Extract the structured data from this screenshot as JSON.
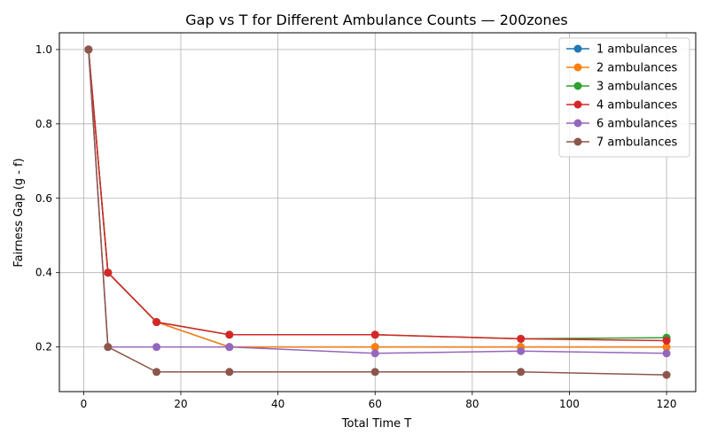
{
  "chart_data": {
    "type": "line",
    "title": "Gap vs T for Different Ambulance Counts — 200zones",
    "xlabel": "Total Time T",
    "ylabel": "Fairness Gap (g - f)",
    "xlim": [
      -5,
      126
    ],
    "ylim": [
      0.08,
      1.045
    ],
    "xticks": [
      0,
      20,
      40,
      60,
      80,
      100,
      120
    ],
    "yticks": [
      0.2,
      0.4,
      0.6,
      0.8,
      1.0
    ],
    "ytick_labels": [
      "0.2",
      "0.4",
      "0.6",
      "0.8",
      "1.0"
    ],
    "grid": true,
    "legend_position": "top-right",
    "x": [
      1,
      5,
      15,
      30,
      60,
      90,
      120
    ],
    "series": [
      {
        "name": "1 ambulances",
        "color": "#1f77b4",
        "values": [
          1.0,
          0.4,
          0.267,
          0.2,
          0.2,
          0.2,
          0.2
        ]
      },
      {
        "name": "2 ambulances",
        "color": "#ff7f0e",
        "values": [
          1.0,
          0.4,
          0.267,
          0.2,
          0.2,
          0.2,
          0.2
        ]
      },
      {
        "name": "3 ambulances",
        "color": "#2ca02c",
        "values": [
          1.0,
          0.4,
          0.267,
          0.233,
          0.233,
          0.222,
          0.225
        ]
      },
      {
        "name": "4 ambulances",
        "color": "#d62728",
        "values": [
          1.0,
          0.4,
          0.267,
          0.233,
          0.233,
          0.222,
          0.217
        ]
      },
      {
        "name": "6 ambulances",
        "color": "#9467bd",
        "values": [
          1.0,
          0.2,
          0.2,
          0.2,
          0.183,
          0.189,
          0.183
        ]
      },
      {
        "name": "7 ambulances",
        "color": "#8c564b",
        "values": [
          1.0,
          0.2,
          0.133,
          0.133,
          0.133,
          0.133,
          0.125
        ]
      }
    ]
  }
}
